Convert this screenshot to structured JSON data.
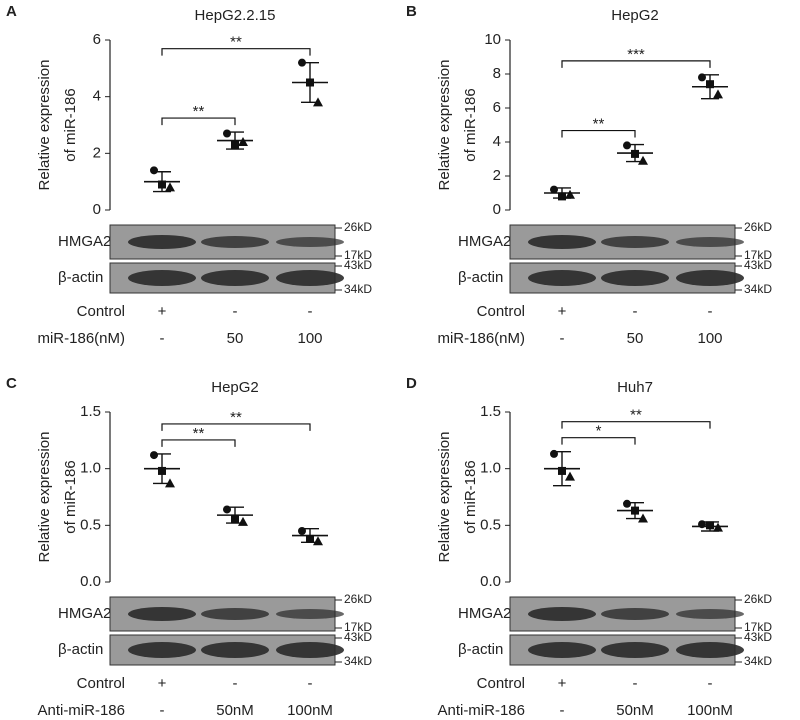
{
  "chart_data": [
    {
      "type": "dotplot",
      "panel": "A",
      "title": "HepG2.2.15",
      "ylabel": [
        "Relative expression",
        "of miR-186"
      ],
      "ylim": [
        0,
        6
      ],
      "yticks": [
        0,
        2,
        4,
        6
      ],
      "points": [
        [
          1.4,
          0.9,
          0.8
        ],
        [
          2.7,
          2.3,
          2.4
        ],
        [
          5.2,
          4.5,
          3.8
        ]
      ],
      "mean": [
        1.0,
        2.45,
        4.5
      ],
      "sd": [
        0.35,
        0.3,
        0.7
      ],
      "annotations": [
        {
          "from": 0,
          "to": 1,
          "label": "**"
        },
        {
          "from": 0,
          "to": 2,
          "label": "**"
        }
      ],
      "blots": [
        {
          "label": "HMGA2",
          "markers": [
            "26kD",
            "17kD"
          ]
        },
        {
          "label": "β-actin",
          "markers": [
            "43kD",
            "34kD"
          ]
        }
      ],
      "conditions": [
        {
          "label": "Control",
          "values": [
            "+",
            "-",
            "-"
          ]
        },
        {
          "label": "miR-186(nM)",
          "values": [
            "-",
            "50",
            "100"
          ]
        }
      ]
    },
    {
      "type": "dotplot",
      "panel": "B",
      "title": "HepG2",
      "ylabel": [
        "Relative expression",
        "of miR-186"
      ],
      "ylim": [
        0,
        10
      ],
      "yticks": [
        0,
        2,
        4,
        6,
        8,
        10
      ],
      "points": [
        [
          1.2,
          0.8,
          0.9
        ],
        [
          3.8,
          3.3,
          2.9
        ],
        [
          7.8,
          7.4,
          6.8
        ]
      ],
      "mean": [
        1.0,
        3.35,
        7.25
      ],
      "sd": [
        0.3,
        0.5,
        0.7
      ],
      "annotations": [
        {
          "from": 0,
          "to": 1,
          "label": "**"
        },
        {
          "from": 0,
          "to": 2,
          "label": "***"
        }
      ],
      "blots": [
        {
          "label": "HMGA2",
          "markers": [
            "26kD",
            "17kD"
          ]
        },
        {
          "label": "β-actin",
          "markers": [
            "43kD",
            "34kD"
          ]
        }
      ],
      "conditions": [
        {
          "label": "Control",
          "values": [
            "+",
            "-",
            "-"
          ]
        },
        {
          "label": "miR-186(nM)",
          "values": [
            "-",
            "50",
            "100"
          ]
        }
      ]
    },
    {
      "type": "dotplot",
      "panel": "C",
      "title": "HepG2",
      "ylabel": [
        "Relative expression",
        "of miR-186"
      ],
      "ylim": [
        0,
        1.5
      ],
      "yticks": [
        {
          "value": 0,
          "label": "0.0"
        },
        0.5,
        {
          "value": 1,
          "label": "1.0"
        },
        1.5
      ],
      "points": [
        [
          1.12,
          0.98,
          0.87
        ],
        [
          0.64,
          0.56,
          0.53
        ],
        [
          0.45,
          0.38,
          0.36
        ]
      ],
      "mean": [
        1.0,
        0.59,
        0.41
      ],
      "sd": [
        0.13,
        0.07,
        0.06
      ],
      "annotations": [
        {
          "from": 0,
          "to": 1,
          "label": "**"
        },
        {
          "from": 0,
          "to": 2,
          "label": "**"
        }
      ],
      "blots": [
        {
          "label": "HMGA2",
          "markers": [
            "26kD",
            "17kD"
          ]
        },
        {
          "label": "β-actin",
          "markers": [
            "43kD",
            "34kD"
          ]
        }
      ],
      "conditions": [
        {
          "label": "Control",
          "values": [
            "+",
            "-",
            "-"
          ]
        },
        {
          "label": "Anti-miR-186",
          "values": [
            "-",
            "50nM",
            "100nM"
          ]
        }
      ]
    },
    {
      "type": "dotplot",
      "panel": "D",
      "title": "Huh7",
      "ylabel": [
        "Relative expression",
        "of miR-186"
      ],
      "ylim": [
        0,
        1.5
      ],
      "yticks": [
        {
          "value": 0,
          "label": "0.0"
        },
        0.5,
        {
          "value": 1,
          "label": "1.0"
        },
        1.5
      ],
      "points": [
        [
          1.13,
          0.98,
          0.93
        ],
        [
          0.69,
          0.63,
          0.56
        ],
        [
          0.51,
          0.5,
          0.48
        ]
      ],
      "mean": [
        1.0,
        0.63,
        0.49
      ],
      "sd": [
        0.15,
        0.07,
        0.04
      ],
      "annotations": [
        {
          "from": 0,
          "to": 1,
          "label": "*"
        },
        {
          "from": 0,
          "to": 2,
          "label": "**"
        }
      ],
      "blots": [
        {
          "label": "HMGA2",
          "markers": [
            "26kD",
            "17kD"
          ]
        },
        {
          "label": "β-actin",
          "markers": [
            "43kD",
            "34kD"
          ]
        }
      ],
      "conditions": [
        {
          "label": "Control",
          "values": [
            "+",
            "-",
            "-"
          ]
        },
        {
          "label": "Anti-miR-186",
          "values": [
            "-",
            "50nM",
            "100nM"
          ]
        }
      ]
    }
  ]
}
